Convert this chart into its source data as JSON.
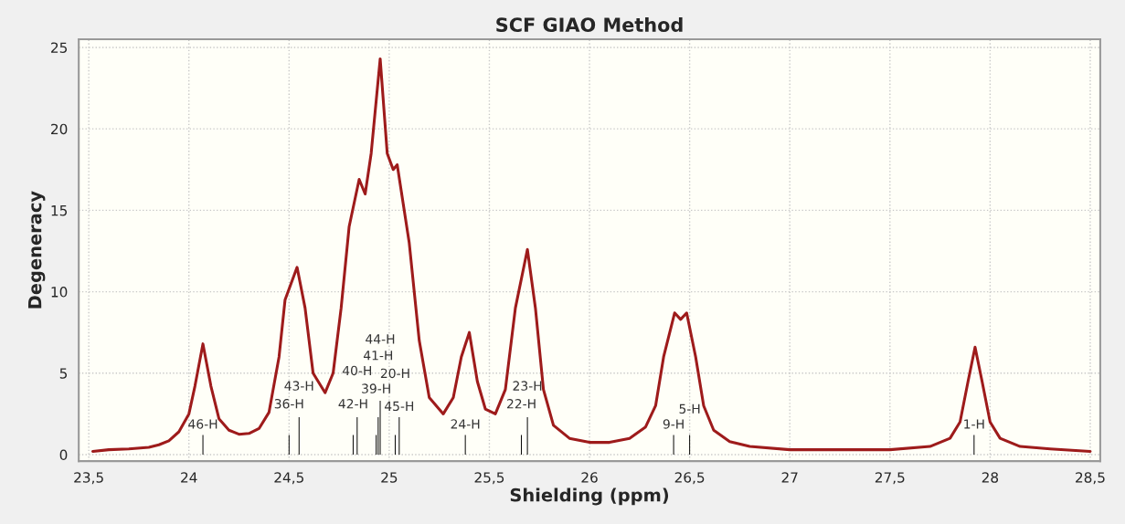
{
  "chart_data": {
    "type": "line",
    "title": "SCF GIAO Method",
    "xlabel": "Shielding (ppm)",
    "ylabel": "Degeneracy",
    "series": [
      {
        "color": "#9e1b1b",
        "x": [
          23.52,
          23.6,
          23.7,
          23.8,
          23.85,
          23.9,
          23.95,
          24.0,
          24.03,
          24.07,
          24.11,
          24.15,
          24.2,
          24.25,
          24.3,
          24.35,
          24.4,
          24.45,
          24.48,
          24.54,
          24.58,
          24.62,
          24.68,
          24.72,
          24.76,
          24.8,
          24.85,
          24.88,
          24.91,
          24.955,
          24.99,
          25.02,
          25.04,
          25.1,
          25.15,
          25.2,
          25.27,
          25.32,
          25.36,
          25.4,
          25.44,
          25.48,
          25.53,
          25.58,
          25.63,
          25.69,
          25.73,
          25.77,
          25.82,
          25.9,
          26.0,
          26.1,
          26.2,
          26.28,
          26.33,
          26.37,
          26.425,
          26.455,
          26.485,
          26.53,
          26.57,
          26.62,
          26.7,
          26.8,
          27.0,
          27.5,
          27.7,
          27.8,
          27.85,
          27.89,
          27.925,
          27.96,
          28.0,
          28.05,
          28.15,
          28.3,
          28.5
        ],
        "values": [
          0.2,
          0.3,
          0.35,
          0.45,
          0.6,
          0.85,
          1.4,
          2.5,
          4.2,
          6.8,
          4.2,
          2.2,
          1.5,
          1.25,
          1.3,
          1.6,
          2.6,
          6,
          9.5,
          11.5,
          9,
          5,
          3.8,
          5,
          9,
          14,
          16.9,
          16,
          18.5,
          24.3,
          18.5,
          17.5,
          17.8,
          13,
          7,
          3.5,
          2.5,
          3.5,
          6,
          7.5,
          4.5,
          2.8,
          2.5,
          4,
          9,
          12.6,
          9,
          4,
          1.8,
          1,
          0.75,
          0.75,
          1,
          1.7,
          3,
          6,
          8.7,
          8.3,
          8.7,
          6,
          3,
          1.5,
          0.8,
          0.5,
          0.3,
          0.3,
          0.5,
          1,
          2,
          4.5,
          6.6,
          4.5,
          2,
          1,
          0.5,
          0.35,
          0.2
        ]
      },
      {
        "type": "bar",
        "color": "#000000",
        "x": [
          24.07,
          24.5,
          24.55,
          24.82,
          24.84,
          24.935,
          24.945,
          24.955,
          25.03,
          25.05,
          25.38,
          25.66,
          25.69,
          26.42,
          26.5,
          27.92
        ],
        "values": [
          1.2,
          1.2,
          2.3,
          1.2,
          2.3,
          1.2,
          2.3,
          3.3,
          1.2,
          2.3,
          1.2,
          1.2,
          2.3,
          1.2,
          1.2,
          1.2
        ]
      }
    ],
    "xlim": [
      23.45,
      28.55
    ],
    "ylim": [
      -0.4,
      25.5
    ],
    "xticks": [
      {
        "value": 23.5,
        "label": "23,5"
      },
      24,
      {
        "value": 24.5,
        "label": "24,5"
      },
      25,
      {
        "value": 25.5,
        "label": "25,5"
      },
      26,
      {
        "value": 26.5,
        "label": "26,5"
      },
      27,
      {
        "value": 27.5,
        "label": "27,5"
      },
      28,
      {
        "value": 28.5,
        "label": "28,5"
      }
    ],
    "yticks": [
      0,
      5,
      10,
      15,
      20,
      25
    ],
    "grid": true,
    "legend": false,
    "marker": "none",
    "line_style": "solid",
    "annotations": [
      "46-H",
      "36-H",
      "43-H",
      "42-H",
      "40-H",
      "39-H",
      "41-H",
      "44-H",
      "20-H",
      "45-H",
      "24-H",
      "22-H",
      "23-H",
      "9-H",
      "5-H",
      "1-H"
    ]
  }
}
